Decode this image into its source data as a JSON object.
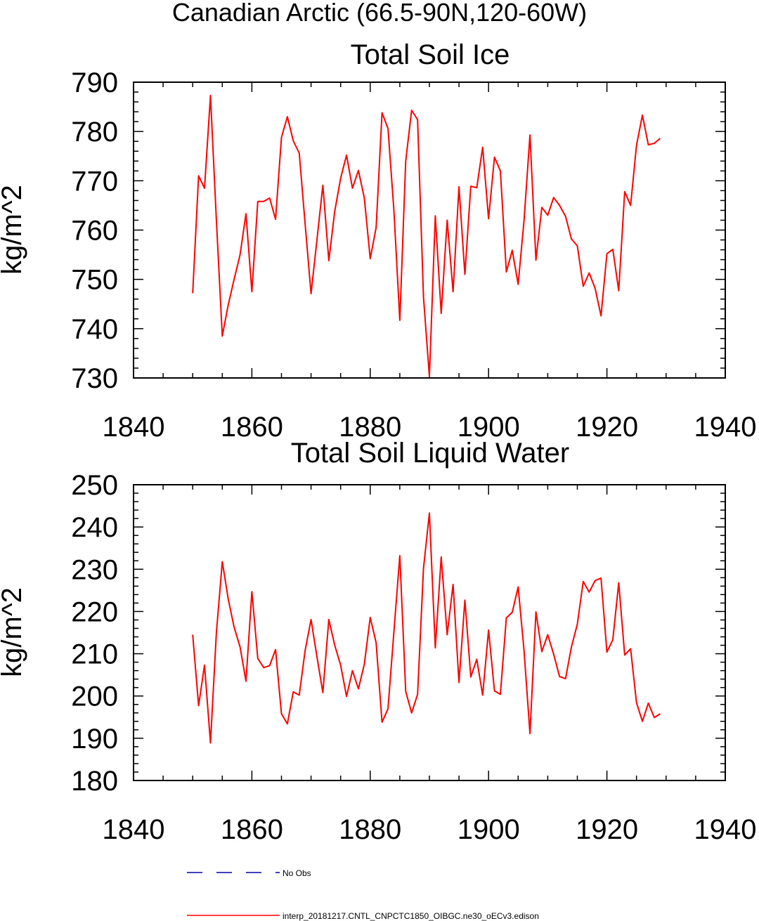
{
  "suptitle": "Canadian Arctic (66.5-90N,120-60W)",
  "chart_data": [
    {
      "type": "line",
      "title": "Total Soil Ice",
      "ylabel": "kg/m^2",
      "xlabel": "",
      "xlim": [
        1840,
        1940
      ],
      "ylim": [
        730,
        790
      ],
      "xticks": [
        1840,
        1860,
        1880,
        1900,
        1920,
        1940
      ],
      "yticks": [
        730,
        740,
        750,
        760,
        770,
        780,
        790
      ],
      "xminor_step": 5,
      "yminor_step": 2,
      "series": [
        {
          "name": "interp_20181217.CNTL_CNPCTC1850_OIBGC.ne30_oECv3.edison",
          "color": "#ff0000",
          "x": [
            1850,
            1851,
            1852,
            1853,
            1854,
            1855,
            1856,
            1857,
            1858,
            1859,
            1860,
            1861,
            1862,
            1863,
            1864,
            1865,
            1866,
            1867,
            1868,
            1869,
            1870,
            1871,
            1872,
            1873,
            1874,
            1875,
            1876,
            1877,
            1878,
            1879,
            1880,
            1881,
            1882,
            1883,
            1884,
            1885,
            1886,
            1887,
            1888,
            1889,
            1890,
            1891,
            1892,
            1893,
            1894,
            1895,
            1896,
            1897,
            1898,
            1899,
            1900,
            1901,
            1902,
            1903,
            1904,
            1905,
            1906,
            1907,
            1908,
            1909,
            1910,
            1911,
            1912,
            1913,
            1914,
            1915,
            1916,
            1917,
            1918,
            1919,
            1920,
            1921,
            1922,
            1923,
            1924,
            1925,
            1926,
            1927,
            1928,
            1929
          ],
          "values": [
            747.2,
            771.0,
            768.5,
            787.3,
            762.0,
            738.5,
            744.8,
            750.0,
            755.0,
            763.3,
            747.5,
            765.8,
            765.8,
            766.5,
            762.2,
            778.8,
            783.0,
            778.1,
            775.6,
            761.2,
            747.1,
            758.0,
            769.1,
            753.8,
            763.8,
            770.5,
            775.2,
            768.5,
            772.1,
            766.5,
            754.2,
            760.5,
            783.8,
            780.6,
            764.0,
            741.7,
            774.0,
            784.3,
            782.4,
            746.4,
            730.3,
            762.9,
            743.1,
            762.0,
            747.5,
            768.8,
            751.0,
            768.9,
            768.6,
            776.8,
            762.3,
            774.8,
            772.0,
            751.5,
            755.9,
            749.0,
            762.0,
            779.3,
            753.9,
            764.6,
            763.0,
            766.6,
            765.0,
            762.8,
            758.2,
            756.8,
            748.6,
            751.3,
            748.2,
            742.6,
            755.2,
            756.1,
            747.7,
            767.8,
            765.0,
            777.2,
            783.3,
            777.3,
            777.6,
            778.6
          ]
        }
      ]
    },
    {
      "type": "line",
      "title": "Total Soil Liquid Water",
      "ylabel": "kg/m^2",
      "xlabel": "",
      "xlim": [
        1840,
        1940
      ],
      "ylim": [
        180,
        250
      ],
      "xticks": [
        1840,
        1860,
        1880,
        1900,
        1920,
        1940
      ],
      "yticks": [
        180,
        190,
        200,
        210,
        220,
        230,
        240,
        250
      ],
      "xminor_step": 5,
      "yminor_step": 2,
      "series": [
        {
          "name": "interp_20181217.CNTL_CNPCTC1850_OIBGC.ne30_oECv3.edison",
          "color": "#ff0000",
          "x": [
            1850,
            1851,
            1852,
            1853,
            1854,
            1855,
            1856,
            1857,
            1858,
            1859,
            1860,
            1861,
            1862,
            1863,
            1864,
            1865,
            1866,
            1867,
            1868,
            1869,
            1870,
            1871,
            1872,
            1873,
            1874,
            1875,
            1876,
            1877,
            1878,
            1879,
            1880,
            1881,
            1882,
            1883,
            1884,
            1885,
            1886,
            1887,
            1888,
            1889,
            1890,
            1891,
            1892,
            1893,
            1894,
            1895,
            1896,
            1897,
            1898,
            1899,
            1900,
            1901,
            1902,
            1903,
            1904,
            1905,
            1906,
            1907,
            1908,
            1909,
            1910,
            1911,
            1912,
            1913,
            1914,
            1915,
            1916,
            1917,
            1918,
            1919,
            1920,
            1921,
            1922,
            1923,
            1924,
            1925,
            1926,
            1927,
            1928,
            1929
          ],
          "values": [
            214.5,
            197.7,
            207.3,
            188.9,
            215.0,
            231.8,
            223.0,
            216.3,
            211.6,
            203.5,
            224.7,
            208.9,
            206.7,
            207.2,
            211.0,
            195.8,
            193.4,
            201.0,
            200.2,
            210.8,
            218.1,
            209.3,
            200.8,
            218.1,
            212.0,
            207.3,
            199.9,
            206.0,
            201.7,
            207.5,
            218.6,
            212.6,
            193.8,
            197.0,
            215.2,
            233.2,
            201.1,
            196.0,
            200.4,
            230.2,
            243.3,
            211.4,
            232.9,
            214.5,
            226.4,
            203.2,
            222.7,
            204.5,
            208.7,
            200.2,
            215.6,
            201.2,
            200.4,
            218.5,
            219.8,
            225.8,
            210.7,
            191.1,
            219.9,
            210.5,
            214.5,
            209.9,
            204.6,
            204.1,
            211.6,
            217.0,
            227.1,
            224.6,
            227.3,
            227.9,
            210.4,
            213.3,
            226.8,
            209.7,
            211.2,
            198.4,
            194.0,
            198.3,
            194.9,
            195.8
          ]
        }
      ]
    }
  ],
  "legend": [
    {
      "label": "No Obs",
      "style": "dashed",
      "color": "#0000aa"
    },
    {
      "label": "interp_20181217.CNTL_CNPCTC1850_OIBGC.ne30_oECv3.edison",
      "style": "solid",
      "color": "#ff0000"
    }
  ]
}
